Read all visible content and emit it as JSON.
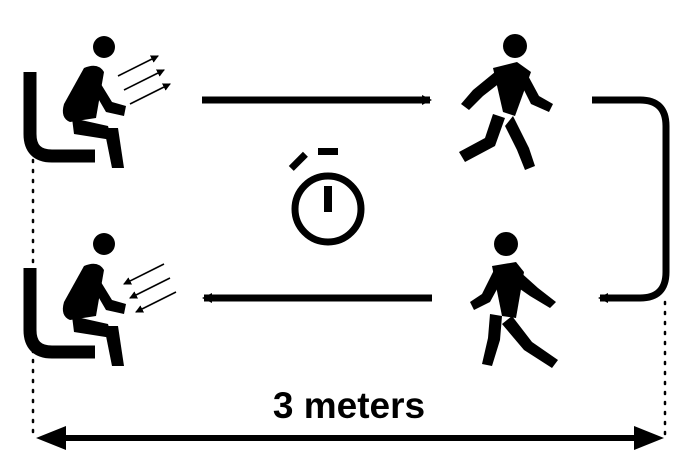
{
  "diagram": {
    "distance_label": "3 meters",
    "stroke_color": "#000000",
    "background_color": "#ffffff",
    "icons": [
      "sit-to-stand-icon",
      "walking-person-icon",
      "stopwatch-icon",
      "walking-person-icon",
      "stand-to-sit-icon"
    ]
  }
}
